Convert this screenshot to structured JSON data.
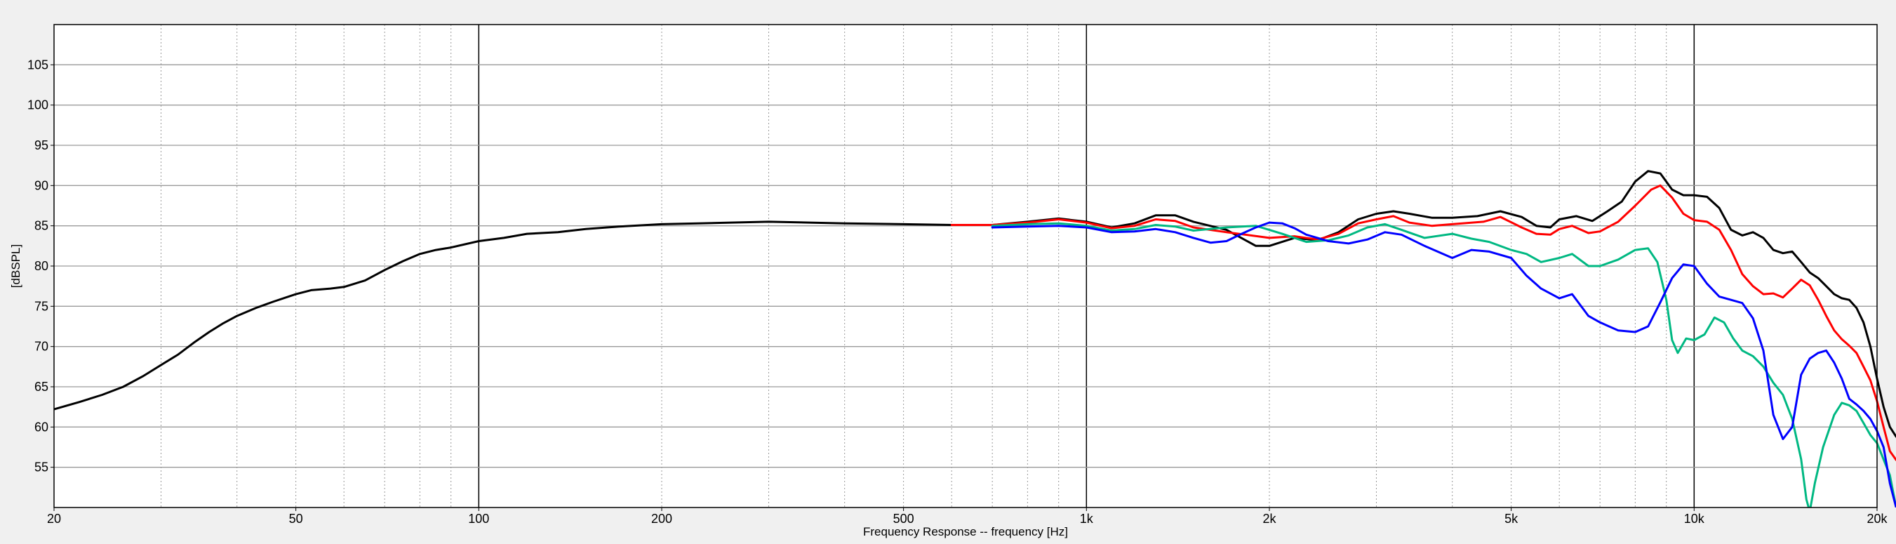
{
  "chart_data": {
    "type": "line",
    "title": "",
    "xlabel": "Frequency Response -- frequency [Hz]",
    "ylabel": "[dBSPL]",
    "xscale": "log",
    "xlim": [
      20,
      20000
    ],
    "ylim": [
      50,
      110
    ],
    "grid": true,
    "legend": "none",
    "x_ticks": [
      {
        "value": 20,
        "label": "20"
      },
      {
        "value": 50,
        "label": "50"
      },
      {
        "value": 100,
        "label": "100"
      },
      {
        "value": 200,
        "label": "200"
      },
      {
        "value": 500,
        "label": "500"
      },
      {
        "value": 1000,
        "label": "1k"
      },
      {
        "value": 2000,
        "label": "2k"
      },
      {
        "value": 5000,
        "label": "5k"
      },
      {
        "value": 10000,
        "label": "10k"
      },
      {
        "value": 20000,
        "label": "20k"
      }
    ],
    "y_ticks": [
      {
        "value": 55,
        "label": "55"
      },
      {
        "value": 60,
        "label": "60"
      },
      {
        "value": 65,
        "label": "65"
      },
      {
        "value": 70,
        "label": "70"
      },
      {
        "value": 75,
        "label": "75"
      },
      {
        "value": 80,
        "label": "80"
      },
      {
        "value": 85,
        "label": "85"
      },
      {
        "value": 90,
        "label": "90"
      },
      {
        "value": 95,
        "label": "95"
      },
      {
        "value": 100,
        "label": "100"
      },
      {
        "value": 105,
        "label": "105"
      }
    ],
    "series": [
      {
        "color": "#000000",
        "points": [
          [
            20,
            62.2
          ],
          [
            22,
            63.1
          ],
          [
            24,
            64
          ],
          [
            26,
            65
          ],
          [
            28,
            66.3
          ],
          [
            30,
            67.7
          ],
          [
            32,
            69
          ],
          [
            34,
            70.5
          ],
          [
            36,
            71.8
          ],
          [
            38,
            72.9
          ],
          [
            40,
            73.8
          ],
          [
            43,
            74.8
          ],
          [
            46,
            75.6
          ],
          [
            50,
            76.5
          ],
          [
            53,
            77
          ],
          [
            57,
            77.2
          ],
          [
            60,
            77.4
          ],
          [
            65,
            78.2
          ],
          [
            70,
            79.5
          ],
          [
            75,
            80.6
          ],
          [
            80,
            81.5
          ],
          [
            85,
            82
          ],
          [
            90,
            82.3
          ],
          [
            100,
            83.1
          ],
          [
            110,
            83.5
          ],
          [
            120,
            84
          ],
          [
            135,
            84.2
          ],
          [
            150,
            84.6
          ],
          [
            170,
            84.9
          ],
          [
            200,
            85.2
          ],
          [
            230,
            85.3
          ],
          [
            260,
            85.4
          ],
          [
            300,
            85.5
          ],
          [
            350,
            85.4
          ],
          [
            400,
            85.3
          ],
          [
            500,
            85.2
          ],
          [
            600,
            85.1
          ],
          [
            700,
            85.1
          ],
          [
            800,
            85.5
          ],
          [
            900,
            85.9
          ],
          [
            1000,
            85.5
          ],
          [
            1100,
            84.8
          ],
          [
            1200,
            85.3
          ],
          [
            1300,
            86.3
          ],
          [
            1400,
            86.3
          ],
          [
            1500,
            85.5
          ],
          [
            1700,
            84.5
          ],
          [
            1900,
            82.5
          ],
          [
            2000,
            82.5
          ],
          [
            2200,
            83.5
          ],
          [
            2400,
            83.2
          ],
          [
            2600,
            84.2
          ],
          [
            2800,
            85.8
          ],
          [
            3000,
            86.5
          ],
          [
            3200,
            86.8
          ],
          [
            3400,
            86.5
          ],
          [
            3700,
            86
          ],
          [
            4000,
            86
          ],
          [
            4400,
            86.2
          ],
          [
            4800,
            86.8
          ],
          [
            5200,
            86.1
          ],
          [
            5500,
            85
          ],
          [
            5800,
            84.8
          ],
          [
            6000,
            85.8
          ],
          [
            6400,
            86.2
          ],
          [
            6800,
            85.6
          ],
          [
            7200,
            86.8
          ],
          [
            7600,
            88
          ],
          [
            8000,
            90.5
          ],
          [
            8400,
            91.8
          ],
          [
            8800,
            91.5
          ],
          [
            9200,
            89.5
          ],
          [
            9600,
            88.8
          ],
          [
            10000,
            88.8
          ],
          [
            10500,
            88.6
          ],
          [
            11000,
            87.2
          ],
          [
            11500,
            84.5
          ],
          [
            12000,
            83.8
          ],
          [
            12500,
            84.2
          ],
          [
            13000,
            83.5
          ],
          [
            13500,
            82
          ],
          [
            14000,
            81.6
          ],
          [
            14500,
            81.8
          ],
          [
            15000,
            80.5
          ],
          [
            15500,
            79.2
          ],
          [
            16000,
            78.5
          ],
          [
            16500,
            77.5
          ],
          [
            17000,
            76.5
          ],
          [
            17500,
            76
          ],
          [
            18000,
            75.8
          ],
          [
            18500,
            74.8
          ],
          [
            19000,
            73
          ],
          [
            19500,
            70
          ],
          [
            20000,
            66
          ],
          [
            20500,
            62.5
          ],
          [
            21000,
            60
          ],
          [
            21500,
            58.8
          ],
          [
            22000,
            58.3
          ]
        ]
      },
      {
        "color": "#ff0000",
        "points": [
          [
            600,
            85.1
          ],
          [
            700,
            85.1
          ],
          [
            800,
            85.4
          ],
          [
            900,
            85.8
          ],
          [
            1000,
            85.4
          ],
          [
            1100,
            84.7
          ],
          [
            1200,
            85
          ],
          [
            1300,
            85.8
          ],
          [
            1400,
            85.6
          ],
          [
            1500,
            84.8
          ],
          [
            1700,
            84.2
          ],
          [
            2000,
            83.5
          ],
          [
            2200,
            83.7
          ],
          [
            2400,
            83.3
          ],
          [
            2600,
            84
          ],
          [
            2800,
            85.3
          ],
          [
            3000,
            85.8
          ],
          [
            3200,
            86.2
          ],
          [
            3400,
            85.4
          ],
          [
            3700,
            85
          ],
          [
            4000,
            85.2
          ],
          [
            4500,
            85.5
          ],
          [
            4800,
            86.1
          ],
          [
            5200,
            84.8
          ],
          [
            5500,
            84
          ],
          [
            5800,
            83.9
          ],
          [
            6000,
            84.6
          ],
          [
            6300,
            85
          ],
          [
            6700,
            84.1
          ],
          [
            7000,
            84.3
          ],
          [
            7500,
            85.5
          ],
          [
            8000,
            87.5
          ],
          [
            8500,
            89.5
          ],
          [
            8800,
            90
          ],
          [
            9200,
            88.5
          ],
          [
            9600,
            86.5
          ],
          [
            10000,
            85.7
          ],
          [
            10500,
            85.5
          ],
          [
            11000,
            84.5
          ],
          [
            11500,
            82
          ],
          [
            12000,
            79
          ],
          [
            12500,
            77.5
          ],
          [
            13000,
            76.5
          ],
          [
            13500,
            76.6
          ],
          [
            14000,
            76.1
          ],
          [
            14500,
            77.2
          ],
          [
            15000,
            78.3
          ],
          [
            15500,
            77.6
          ],
          [
            16000,
            75.8
          ],
          [
            16500,
            73.8
          ],
          [
            17000,
            72
          ],
          [
            17500,
            70.9
          ],
          [
            18000,
            70.1
          ],
          [
            18500,
            69.2
          ],
          [
            19000,
            67.5
          ],
          [
            19500,
            65.8
          ],
          [
            20000,
            63.2
          ],
          [
            20500,
            60
          ],
          [
            21000,
            57
          ],
          [
            21500,
            55.9
          ],
          [
            22000,
            56.5
          ],
          [
            22500,
            57.2
          ]
        ]
      },
      {
        "color": "#00b882",
        "points": [
          [
            700,
            85
          ],
          [
            800,
            85.2
          ],
          [
            900,
            85.3
          ],
          [
            1000,
            85
          ],
          [
            1100,
            84.4
          ],
          [
            1200,
            84.6
          ],
          [
            1300,
            85.1
          ],
          [
            1400,
            84.9
          ],
          [
            1500,
            84.4
          ],
          [
            1700,
            84.8
          ],
          [
            1900,
            85
          ],
          [
            2100,
            84
          ],
          [
            2300,
            83
          ],
          [
            2500,
            83.2
          ],
          [
            2700,
            83.8
          ],
          [
            2900,
            84.8
          ],
          [
            3100,
            85.2
          ],
          [
            3300,
            84.5
          ],
          [
            3600,
            83.5
          ],
          [
            4000,
            84
          ],
          [
            4300,
            83.4
          ],
          [
            4600,
            83
          ],
          [
            5000,
            82
          ],
          [
            5300,
            81.5
          ],
          [
            5600,
            80.5
          ],
          [
            6000,
            81
          ],
          [
            6300,
            81.5
          ],
          [
            6700,
            80
          ],
          [
            7000,
            80
          ],
          [
            7500,
            80.8
          ],
          [
            8000,
            82
          ],
          [
            8400,
            82.2
          ],
          [
            8700,
            80.5
          ],
          [
            9000,
            75.8
          ],
          [
            9200,
            70.8
          ],
          [
            9400,
            69.2
          ],
          [
            9700,
            71
          ],
          [
            10000,
            70.8
          ],
          [
            10400,
            71.5
          ],
          [
            10800,
            73.6
          ],
          [
            11200,
            73
          ],
          [
            11600,
            71
          ],
          [
            12000,
            69.5
          ],
          [
            12500,
            68.8
          ],
          [
            13000,
            67.5
          ],
          [
            13500,
            65.5
          ],
          [
            14000,
            64
          ],
          [
            14500,
            61
          ],
          [
            15000,
            56
          ],
          [
            15300,
            51
          ],
          [
            15500,
            49.5
          ],
          [
            15800,
            53
          ],
          [
            16300,
            57.5
          ],
          [
            17000,
            61.5
          ],
          [
            17500,
            63
          ],
          [
            18000,
            62.7
          ],
          [
            18500,
            62
          ],
          [
            19000,
            60.5
          ],
          [
            19500,
            59
          ],
          [
            20000,
            58
          ],
          [
            21000,
            54
          ],
          [
            21500,
            50
          ]
        ]
      },
      {
        "color": "#0000ff",
        "points": [
          [
            700,
            84.8
          ],
          [
            800,
            84.9
          ],
          [
            900,
            85
          ],
          [
            1000,
            84.8
          ],
          [
            1100,
            84.2
          ],
          [
            1200,
            84.3
          ],
          [
            1300,
            84.6
          ],
          [
            1400,
            84.2
          ],
          [
            1500,
            83.5
          ],
          [
            1600,
            82.9
          ],
          [
            1700,
            83.1
          ],
          [
            1800,
            84
          ],
          [
            1900,
            84.8
          ],
          [
            2000,
            85.4
          ],
          [
            2100,
            85.3
          ],
          [
            2200,
            84.7
          ],
          [
            2300,
            83.9
          ],
          [
            2500,
            83.1
          ],
          [
            2700,
            82.8
          ],
          [
            2900,
            83.3
          ],
          [
            3100,
            84.2
          ],
          [
            3300,
            83.9
          ],
          [
            3600,
            82.5
          ],
          [
            4000,
            81
          ],
          [
            4300,
            82
          ],
          [
            4600,
            81.8
          ],
          [
            5000,
            81
          ],
          [
            5300,
            78.8
          ],
          [
            5600,
            77.2
          ],
          [
            6000,
            76
          ],
          [
            6300,
            76.5
          ],
          [
            6700,
            73.8
          ],
          [
            7000,
            73
          ],
          [
            7500,
            72
          ],
          [
            8000,
            71.8
          ],
          [
            8400,
            72.5
          ],
          [
            8800,
            75.5
          ],
          [
            9200,
            78.5
          ],
          [
            9600,
            80.2
          ],
          [
            10000,
            80
          ],
          [
            10500,
            77.8
          ],
          [
            11000,
            76.2
          ],
          [
            11500,
            75.8
          ],
          [
            12000,
            75.4
          ],
          [
            12500,
            73.5
          ],
          [
            13000,
            69.5
          ],
          [
            13500,
            61.5
          ],
          [
            14000,
            58.5
          ],
          [
            14500,
            60
          ],
          [
            15000,
            66.5
          ],
          [
            15500,
            68.5
          ],
          [
            16000,
            69.2
          ],
          [
            16500,
            69.5
          ],
          [
            17000,
            68
          ],
          [
            17500,
            66
          ],
          [
            18000,
            63.5
          ],
          [
            18500,
            62.8
          ],
          [
            19000,
            62
          ],
          [
            19500,
            61
          ],
          [
            20000,
            59.5
          ],
          [
            20500,
            57.5
          ],
          [
            21000,
            53
          ],
          [
            21500,
            50
          ]
        ]
      }
    ]
  }
}
